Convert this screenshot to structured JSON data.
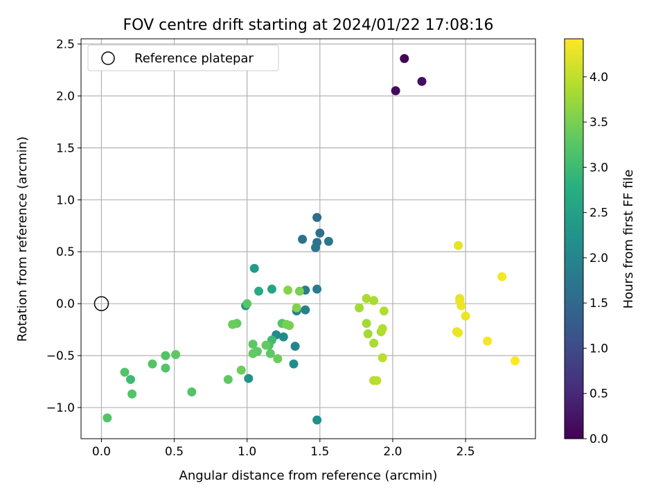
{
  "chart_data": {
    "type": "scatter",
    "title": "FOV centre drift starting at 2024/01/22 17:08:16",
    "xlabel": "Angular distance from reference (arcmin)",
    "ylabel": "Rotation from reference (arcmin)",
    "xlim": [
      -0.14,
      2.98
    ],
    "ylim": [
      -1.3,
      2.55
    ],
    "xticks": [
      0.0,
      0.5,
      1.0,
      1.5,
      2.0,
      2.5
    ],
    "xtick_labels": [
      "0.0",
      "0.5",
      "1.0",
      "1.5",
      "2.0",
      "2.5"
    ],
    "yticks": [
      -1.0,
      -0.5,
      0.0,
      0.5,
      1.0,
      1.5,
      2.0,
      2.5
    ],
    "ytick_labels": [
      "−1.0",
      "−0.5",
      "0.0",
      "0.5",
      "1.0",
      "1.5",
      "2.0",
      "2.5"
    ],
    "grid": true,
    "legend": {
      "placement": "upper-left",
      "entries": [
        {
          "label": "Reference platepar",
          "marker": "open-circle",
          "x": 0.0,
          "y": 0.0
        }
      ]
    },
    "colorbar": {
      "label": "Hours from first FF file",
      "colormap": "viridis",
      "min": 0.0,
      "max": 4.42,
      "ticks": [
        0.0,
        0.5,
        1.0,
        1.5,
        2.0,
        2.5,
        3.0,
        3.5,
        4.0
      ],
      "tick_labels": [
        "0.0",
        "0.5",
        "1.0",
        "1.5",
        "2.0",
        "2.5",
        "3.0",
        "3.5",
        "4.0"
      ]
    },
    "points": [
      {
        "x": 2.08,
        "y": 2.36,
        "c": 0.05
      },
      {
        "x": 2.02,
        "y": 2.05,
        "c": 0.12
      },
      {
        "x": 2.2,
        "y": 2.14,
        "c": 0.18
      },
      {
        "x": 1.48,
        "y": 0.83,
        "c": 1.55
      },
      {
        "x": 1.5,
        "y": 0.68,
        "c": 1.6
      },
      {
        "x": 1.38,
        "y": 0.62,
        "c": 1.65
      },
      {
        "x": 1.48,
        "y": 0.59,
        "c": 1.68
      },
      {
        "x": 1.47,
        "y": 0.54,
        "c": 1.72
      },
      {
        "x": 1.56,
        "y": 0.6,
        "c": 1.75
      },
      {
        "x": 1.4,
        "y": 0.13,
        "c": 1.82
      },
      {
        "x": 1.48,
        "y": 0.14,
        "c": 1.85
      },
      {
        "x": 1.4,
        "y": -0.06,
        "c": 1.9
      },
      {
        "x": 1.34,
        "y": -0.07,
        "c": 1.95
      },
      {
        "x": 1.33,
        "y": -0.41,
        "c": 2.0
      },
      {
        "x": 1.2,
        "y": -0.3,
        "c": 2.05
      },
      {
        "x": 1.25,
        "y": -0.32,
        "c": 2.1
      },
      {
        "x": 1.32,
        "y": -0.58,
        "c": 2.15
      },
      {
        "x": 1.48,
        "y": -1.12,
        "c": 2.2
      },
      {
        "x": 1.01,
        "y": -0.72,
        "c": 2.25
      },
      {
        "x": 0.99,
        "y": -0.02,
        "c": 2.3
      },
      {
        "x": 1.05,
        "y": 0.34,
        "c": 2.4
      },
      {
        "x": 1.17,
        "y": 0.14,
        "c": 2.6
      },
      {
        "x": 1.08,
        "y": 0.12,
        "c": 2.7
      },
      {
        "x": 1.17,
        "y": -0.35,
        "c": 3.0
      },
      {
        "x": 1.15,
        "y": -0.4,
        "c": 3.1
      },
      {
        "x": 1.24,
        "y": -0.19,
        "c": 3.2
      },
      {
        "x": 1.0,
        "y": 0.0,
        "c": 3.25
      },
      {
        "x": 1.04,
        "y": -0.39,
        "c": 3.3
      },
      {
        "x": 1.07,
        "y": -0.46,
        "c": 3.3
      },
      {
        "x": 1.04,
        "y": -0.48,
        "c": 3.35
      },
      {
        "x": 1.13,
        "y": -0.4,
        "c": 3.35
      },
      {
        "x": 1.16,
        "y": -0.48,
        "c": 3.3
      },
      {
        "x": 1.21,
        "y": -0.53,
        "c": 3.4
      },
      {
        "x": 0.93,
        "y": -0.19,
        "c": 3.35
      },
      {
        "x": 0.9,
        "y": -0.2,
        "c": 3.4
      },
      {
        "x": 0.96,
        "y": -0.64,
        "c": 3.4
      },
      {
        "x": 0.87,
        "y": -0.73,
        "c": 3.3
      },
      {
        "x": 0.62,
        "y": -0.85,
        "c": 3.2
      },
      {
        "x": 0.51,
        "y": -0.49,
        "c": 3.3
      },
      {
        "x": 0.44,
        "y": -0.5,
        "c": 3.2
      },
      {
        "x": 0.44,
        "y": -0.62,
        "c": 3.2
      },
      {
        "x": 0.35,
        "y": -0.58,
        "c": 3.2
      },
      {
        "x": 0.16,
        "y": -0.66,
        "c": 3.2
      },
      {
        "x": 0.2,
        "y": -0.73,
        "c": 3.0
      },
      {
        "x": 0.21,
        "y": -0.87,
        "c": 3.2
      },
      {
        "x": 0.04,
        "y": -1.1,
        "c": 3.2
      },
      {
        "x": 1.28,
        "y": 0.13,
        "c": 3.6
      },
      {
        "x": 1.36,
        "y": 0.12,
        "c": 3.5
      },
      {
        "x": 1.27,
        "y": -0.2,
        "c": 3.5
      },
      {
        "x": 1.29,
        "y": -0.21,
        "c": 3.5
      },
      {
        "x": 1.34,
        "y": -0.04,
        "c": 3.55
      },
      {
        "x": 1.77,
        "y": -0.04,
        "c": 3.8
      },
      {
        "x": 1.82,
        "y": 0.05,
        "c": 3.85
      },
      {
        "x": 1.87,
        "y": 0.03,
        "c": 3.85
      },
      {
        "x": 1.82,
        "y": -0.19,
        "c": 3.8
      },
      {
        "x": 1.83,
        "y": -0.29,
        "c": 3.8
      },
      {
        "x": 1.87,
        "y": -0.38,
        "c": 3.85
      },
      {
        "x": 1.92,
        "y": -0.27,
        "c": 3.85
      },
      {
        "x": 1.93,
        "y": -0.24,
        "c": 3.9
      },
      {
        "x": 1.94,
        "y": -0.07,
        "c": 3.9
      },
      {
        "x": 1.93,
        "y": -0.52,
        "c": 3.95
      },
      {
        "x": 1.87,
        "y": -0.74,
        "c": 3.9
      },
      {
        "x": 1.89,
        "y": -0.74,
        "c": 3.95
      },
      {
        "x": 2.45,
        "y": 0.56,
        "c": 4.25
      },
      {
        "x": 2.46,
        "y": 0.05,
        "c": 4.25
      },
      {
        "x": 2.46,
        "y": 0.02,
        "c": 4.3
      },
      {
        "x": 2.47,
        "y": -0.02,
        "c": 4.3
      },
      {
        "x": 2.44,
        "y": -0.27,
        "c": 4.25
      },
      {
        "x": 2.45,
        "y": -0.28,
        "c": 4.3
      },
      {
        "x": 2.5,
        "y": -0.12,
        "c": 4.3
      },
      {
        "x": 2.65,
        "y": -0.36,
        "c": 4.35
      },
      {
        "x": 2.75,
        "y": 0.26,
        "c": 4.35
      },
      {
        "x": 2.84,
        "y": -0.55,
        "c": 4.4
      }
    ]
  }
}
